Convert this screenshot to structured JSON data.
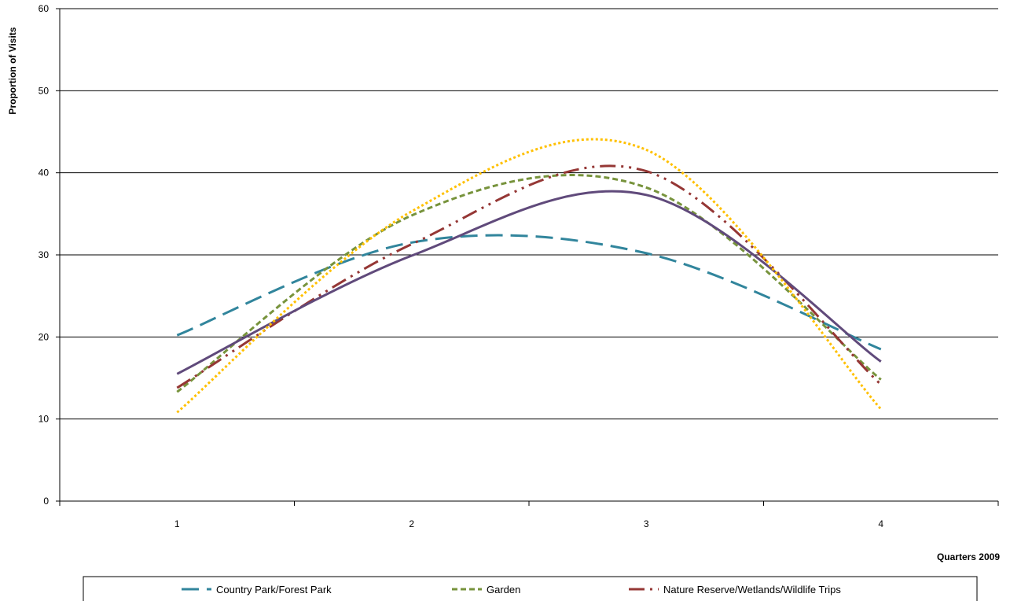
{
  "chart_data": {
    "type": "line",
    "title": "",
    "xlabel": "Quarters 2009",
    "ylabel": "Proportion of Visits",
    "x": [
      1,
      2,
      3,
      4
    ],
    "xlim": [
      0.5,
      4.5
    ],
    "ylim": [
      0,
      60
    ],
    "y_ticks": [
      0,
      10,
      20,
      30,
      40,
      50,
      60
    ],
    "grid": true,
    "smooth": true,
    "legend_position": "bottom",
    "series": [
      {
        "name": "Country Park/Forest Park",
        "values": [
          20.2,
          31.5,
          30.2,
          18.5
        ],
        "color": "#31859c",
        "dash": "long-dash"
      },
      {
        "name": "Garden",
        "values": [
          13.3,
          34.8,
          38.2,
          14.8
        ],
        "color": "#77933c",
        "dash": "short-dash"
      },
      {
        "name": "Nature Reserve/Wetlands/Wildlife Trips",
        "values": [
          13.8,
          31.3,
          40.2,
          14.2
        ],
        "color": "#953735",
        "dash": "dash-dot-dot"
      },
      {
        "values": [
          15.5,
          29.9,
          37.3,
          17.0
        ],
        "color": "#604a7b",
        "dash": "solid"
      },
      {
        "values": [
          10.8,
          35.3,
          42.8,
          11.2
        ],
        "color": "#ffc000",
        "dash": "dotted"
      }
    ]
  }
}
